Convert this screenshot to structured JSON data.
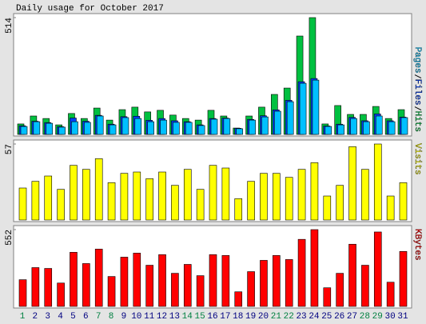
{
  "chart_data": [
    {
      "type": "bar",
      "title": "Daily usage for October 2017",
      "ylim": [
        0,
        514
      ],
      "yticks": [
        514
      ],
      "series": [
        {
          "name": "Hits",
          "color": "#00c040",
          "values": [
            46,
            81,
            70,
            42,
            92,
            70,
            116,
            63,
            109,
            120,
            99,
            106,
            85,
            70,
            63,
            106,
            81,
            28,
            81,
            120,
            176,
            204,
            433,
            514,
            46,
            127,
            88,
            88,
            123,
            70,
            109
          ]
        },
        {
          "name": "Files",
          "color": "#0040ff",
          "values": [
            38,
            58,
            52,
            34,
            72,
            58,
            84,
            45,
            78,
            80,
            62,
            70,
            60,
            56,
            42,
            70,
            72,
            27,
            66,
            82,
            108,
            150,
            232,
            246,
            37,
            45,
            75,
            60,
            90,
            60,
            76
          ]
        },
        {
          "name": "Pages",
          "color": "#00c0ff",
          "values": [
            35,
            56,
            49,
            32,
            56,
            53,
            81,
            42,
            74,
            70,
            56,
            63,
            53,
            53,
            39,
            67,
            70,
            25,
            63,
            77,
            102,
            144,
            225,
            239,
            35,
            42,
            70,
            56,
            81,
            56,
            74
          ]
        }
      ]
    },
    {
      "type": "bar",
      "ylim": [
        0,
        57
      ],
      "yticks": [
        57
      ],
      "series": [
        {
          "name": "Visits",
          "color": "#ffff00",
          "values": [
            24,
            29,
            33,
            23,
            41,
            38,
            46,
            28,
            35,
            36,
            31,
            36,
            26,
            38,
            23,
            41,
            39,
            16,
            29,
            35,
            35,
            32,
            38,
            43,
            18,
            26,
            55,
            38,
            57,
            18,
            28
          ]
        }
      ]
    },
    {
      "type": "bar",
      "ylim": [
        0,
        552
      ],
      "yticks": [
        552
      ],
      "categories": [
        "1",
        "2",
        "3",
        "4",
        "5",
        "6",
        "7",
        "8",
        "9",
        "10",
        "11",
        "12",
        "13",
        "14",
        "15",
        "16",
        "17",
        "18",
        "19",
        "20",
        "21",
        "22",
        "23",
        "24",
        "25",
        "26",
        "27",
        "28",
        "29",
        "30",
        "31"
      ],
      "category_colors": [
        "#008040",
        "#000080",
        "#000080",
        "#000080",
        "#000080",
        "#000080",
        "#008040",
        "#008040",
        "#000080",
        "#000080",
        "#000080",
        "#000080",
        "#000080",
        "#008040",
        "#008040",
        "#000080",
        "#000080",
        "#000080",
        "#000080",
        "#000080",
        "#008040",
        "#008040",
        "#000080",
        "#000080",
        "#000080",
        "#000080",
        "#000080",
        "#008040",
        "#008040",
        "#000080",
        "#000080"
      ],
      "series": [
        {
          "name": "KBytes",
          "color": "#ff0000",
          "values": [
            192,
            279,
            273,
            168,
            389,
            308,
            412,
            215,
            354,
            383,
            296,
            372,
            238,
            302,
            221,
            372,
            366,
            105,
            250,
            331,
            366,
            337,
            482,
            552,
            134,
            238,
            447,
            296,
            535,
            174,
            395
          ]
        }
      ]
    }
  ]
}
